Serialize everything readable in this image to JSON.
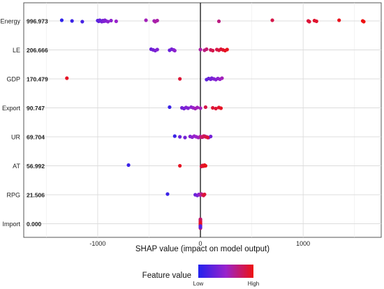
{
  "chart_data": {
    "type": "scatter",
    "xlabel": "SHAP value (impact on model output)",
    "xlim": [
      -1720,
      1760
    ],
    "x_ticks": [
      -1000,
      0,
      1000
    ],
    "x_tick_labels": [
      "-1000",
      "0",
      "1000"
    ],
    "grid": true,
    "zero_line": true,
    "features": [
      {
        "name": "Energy",
        "mean_abs_shap": "996.973",
        "points": [
          [
            -1350,
            0.05
          ],
          [
            -1250,
            0.1
          ],
          [
            -1150,
            0.15
          ],
          [
            -1000,
            0.2
          ],
          [
            -990,
            0.25
          ],
          [
            -980,
            0.3
          ],
          [
            -970,
            0.3
          ],
          [
            -960,
            0.35
          ],
          [
            -950,
            0.35
          ],
          [
            -940,
            0.4
          ],
          [
            -930,
            0.4
          ],
          [
            -920,
            0.4
          ],
          [
            -900,
            0.45
          ],
          [
            -870,
            0.45
          ],
          [
            -820,
            0.5
          ],
          [
            -530,
            0.55
          ],
          [
            -450,
            0.55
          ],
          [
            -440,
            0.6
          ],
          [
            -420,
            0.6
          ],
          [
            180,
            0.7
          ],
          [
            700,
            0.85
          ],
          [
            1050,
            0.88
          ],
          [
            1060,
            0.9
          ],
          [
            1110,
            0.92
          ],
          [
            1130,
            0.92
          ],
          [
            1350,
            0.97
          ],
          [
            1580,
            1.0
          ],
          [
            1590,
            1.0
          ]
        ]
      },
      {
        "name": "LE",
        "mean_abs_shap": "206.666",
        "points": [
          [
            -480,
            0.3
          ],
          [
            -460,
            0.35
          ],
          [
            -440,
            0.38
          ],
          [
            -420,
            0.4
          ],
          [
            -300,
            0.3
          ],
          [
            -280,
            0.35
          ],
          [
            -260,
            0.4
          ],
          [
            -250,
            0.45
          ],
          [
            0,
            0.6
          ],
          [
            40,
            0.7
          ],
          [
            60,
            0.75
          ],
          [
            100,
            0.8
          ],
          [
            120,
            0.85
          ],
          [
            160,
            0.85
          ],
          [
            180,
            0.88
          ],
          [
            200,
            0.9
          ],
          [
            220,
            0.92
          ],
          [
            240,
            0.95
          ],
          [
            260,
            0.97
          ]
        ]
      },
      {
        "name": "GDP",
        "mean_abs_shap": "170.479",
        "points": [
          [
            -1300,
            0.95
          ],
          [
            -200,
            0.9
          ],
          [
            60,
            0.25
          ],
          [
            80,
            0.3
          ],
          [
            100,
            0.35
          ],
          [
            110,
            0.35
          ],
          [
            130,
            0.4
          ],
          [
            150,
            0.4
          ],
          [
            170,
            0.45
          ],
          [
            190,
            0.5
          ],
          [
            210,
            0.55
          ]
        ]
      },
      {
        "name": "Export",
        "mean_abs_shap": "90.747",
        "points": [
          [
            -300,
            0.1
          ],
          [
            -180,
            0.35
          ],
          [
            -160,
            0.35
          ],
          [
            -140,
            0.4
          ],
          [
            -120,
            0.4
          ],
          [
            -90,
            0.45
          ],
          [
            -70,
            0.5
          ],
          [
            -50,
            0.55
          ],
          [
            -30,
            0.55
          ],
          [
            0,
            0.55
          ],
          [
            50,
            0.85
          ],
          [
            120,
            0.9
          ],
          [
            150,
            0.9
          ],
          [
            180,
            0.92
          ],
          [
            200,
            0.95
          ]
        ]
      },
      {
        "name": "UR",
        "mean_abs_shap": "69.704",
        "points": [
          [
            -250,
            0.1
          ],
          [
            -200,
            0.3
          ],
          [
            -150,
            0.35
          ],
          [
            -100,
            0.4
          ],
          [
            -80,
            0.45
          ],
          [
            -60,
            0.5
          ],
          [
            -40,
            0.5
          ],
          [
            -20,
            0.55
          ],
          [
            0,
            0.6
          ],
          [
            20,
            0.65
          ],
          [
            40,
            0.6
          ],
          [
            60,
            0.55
          ],
          [
            80,
            0.45
          ],
          [
            100,
            0.35
          ],
          [
            10,
            0.75
          ],
          [
            30,
            0.8
          ],
          [
            50,
            0.85
          ],
          [
            70,
            0.9
          ]
        ]
      },
      {
        "name": "AT",
        "mean_abs_shap": "56.992",
        "points": [
          [
            -700,
            0.1
          ],
          [
            -200,
            0.95
          ],
          [
            10,
            0.85
          ],
          [
            20,
            0.9
          ],
          [
            30,
            0.95
          ],
          [
            40,
            0.95
          ],
          [
            50,
            0.98
          ]
        ]
      },
      {
        "name": "RPG",
        "mean_abs_shap": "21.506",
        "points": [
          [
            -320,
            0.1
          ],
          [
            -50,
            0.3
          ],
          [
            -30,
            0.35
          ],
          [
            -15,
            0.45
          ],
          [
            0,
            0.55
          ],
          [
            10,
            0.65
          ],
          [
            20,
            0.75
          ],
          [
            30,
            0.85
          ],
          [
            40,
            0.9
          ]
        ]
      },
      {
        "name": "Import",
        "mean_abs_shap": "0.000",
        "points": [
          [
            0,
            0.3
          ],
          [
            0,
            0.35
          ],
          [
            0,
            0.4
          ],
          [
            0,
            0.45
          ],
          [
            0,
            0.5
          ],
          [
            0,
            0.55
          ],
          [
            0,
            0.6
          ],
          [
            0,
            0.65
          ],
          [
            0,
            0.7
          ],
          [
            0,
            0.75
          ],
          [
            0,
            0.8
          ],
          [
            0,
            0.85
          ],
          [
            0,
            0.9
          ],
          [
            0,
            0.95
          ],
          [
            0,
            1.0
          ],
          [
            0,
            0.25
          ],
          [
            0,
            0.2
          ]
        ]
      }
    ],
    "legend": {
      "title": "Feature value",
      "low_label": "Low",
      "high_label": "High",
      "low_color": "#2222ee",
      "mid_color": "#9922cc",
      "high_color": "#ee1111",
      "placement": "bottom"
    }
  }
}
